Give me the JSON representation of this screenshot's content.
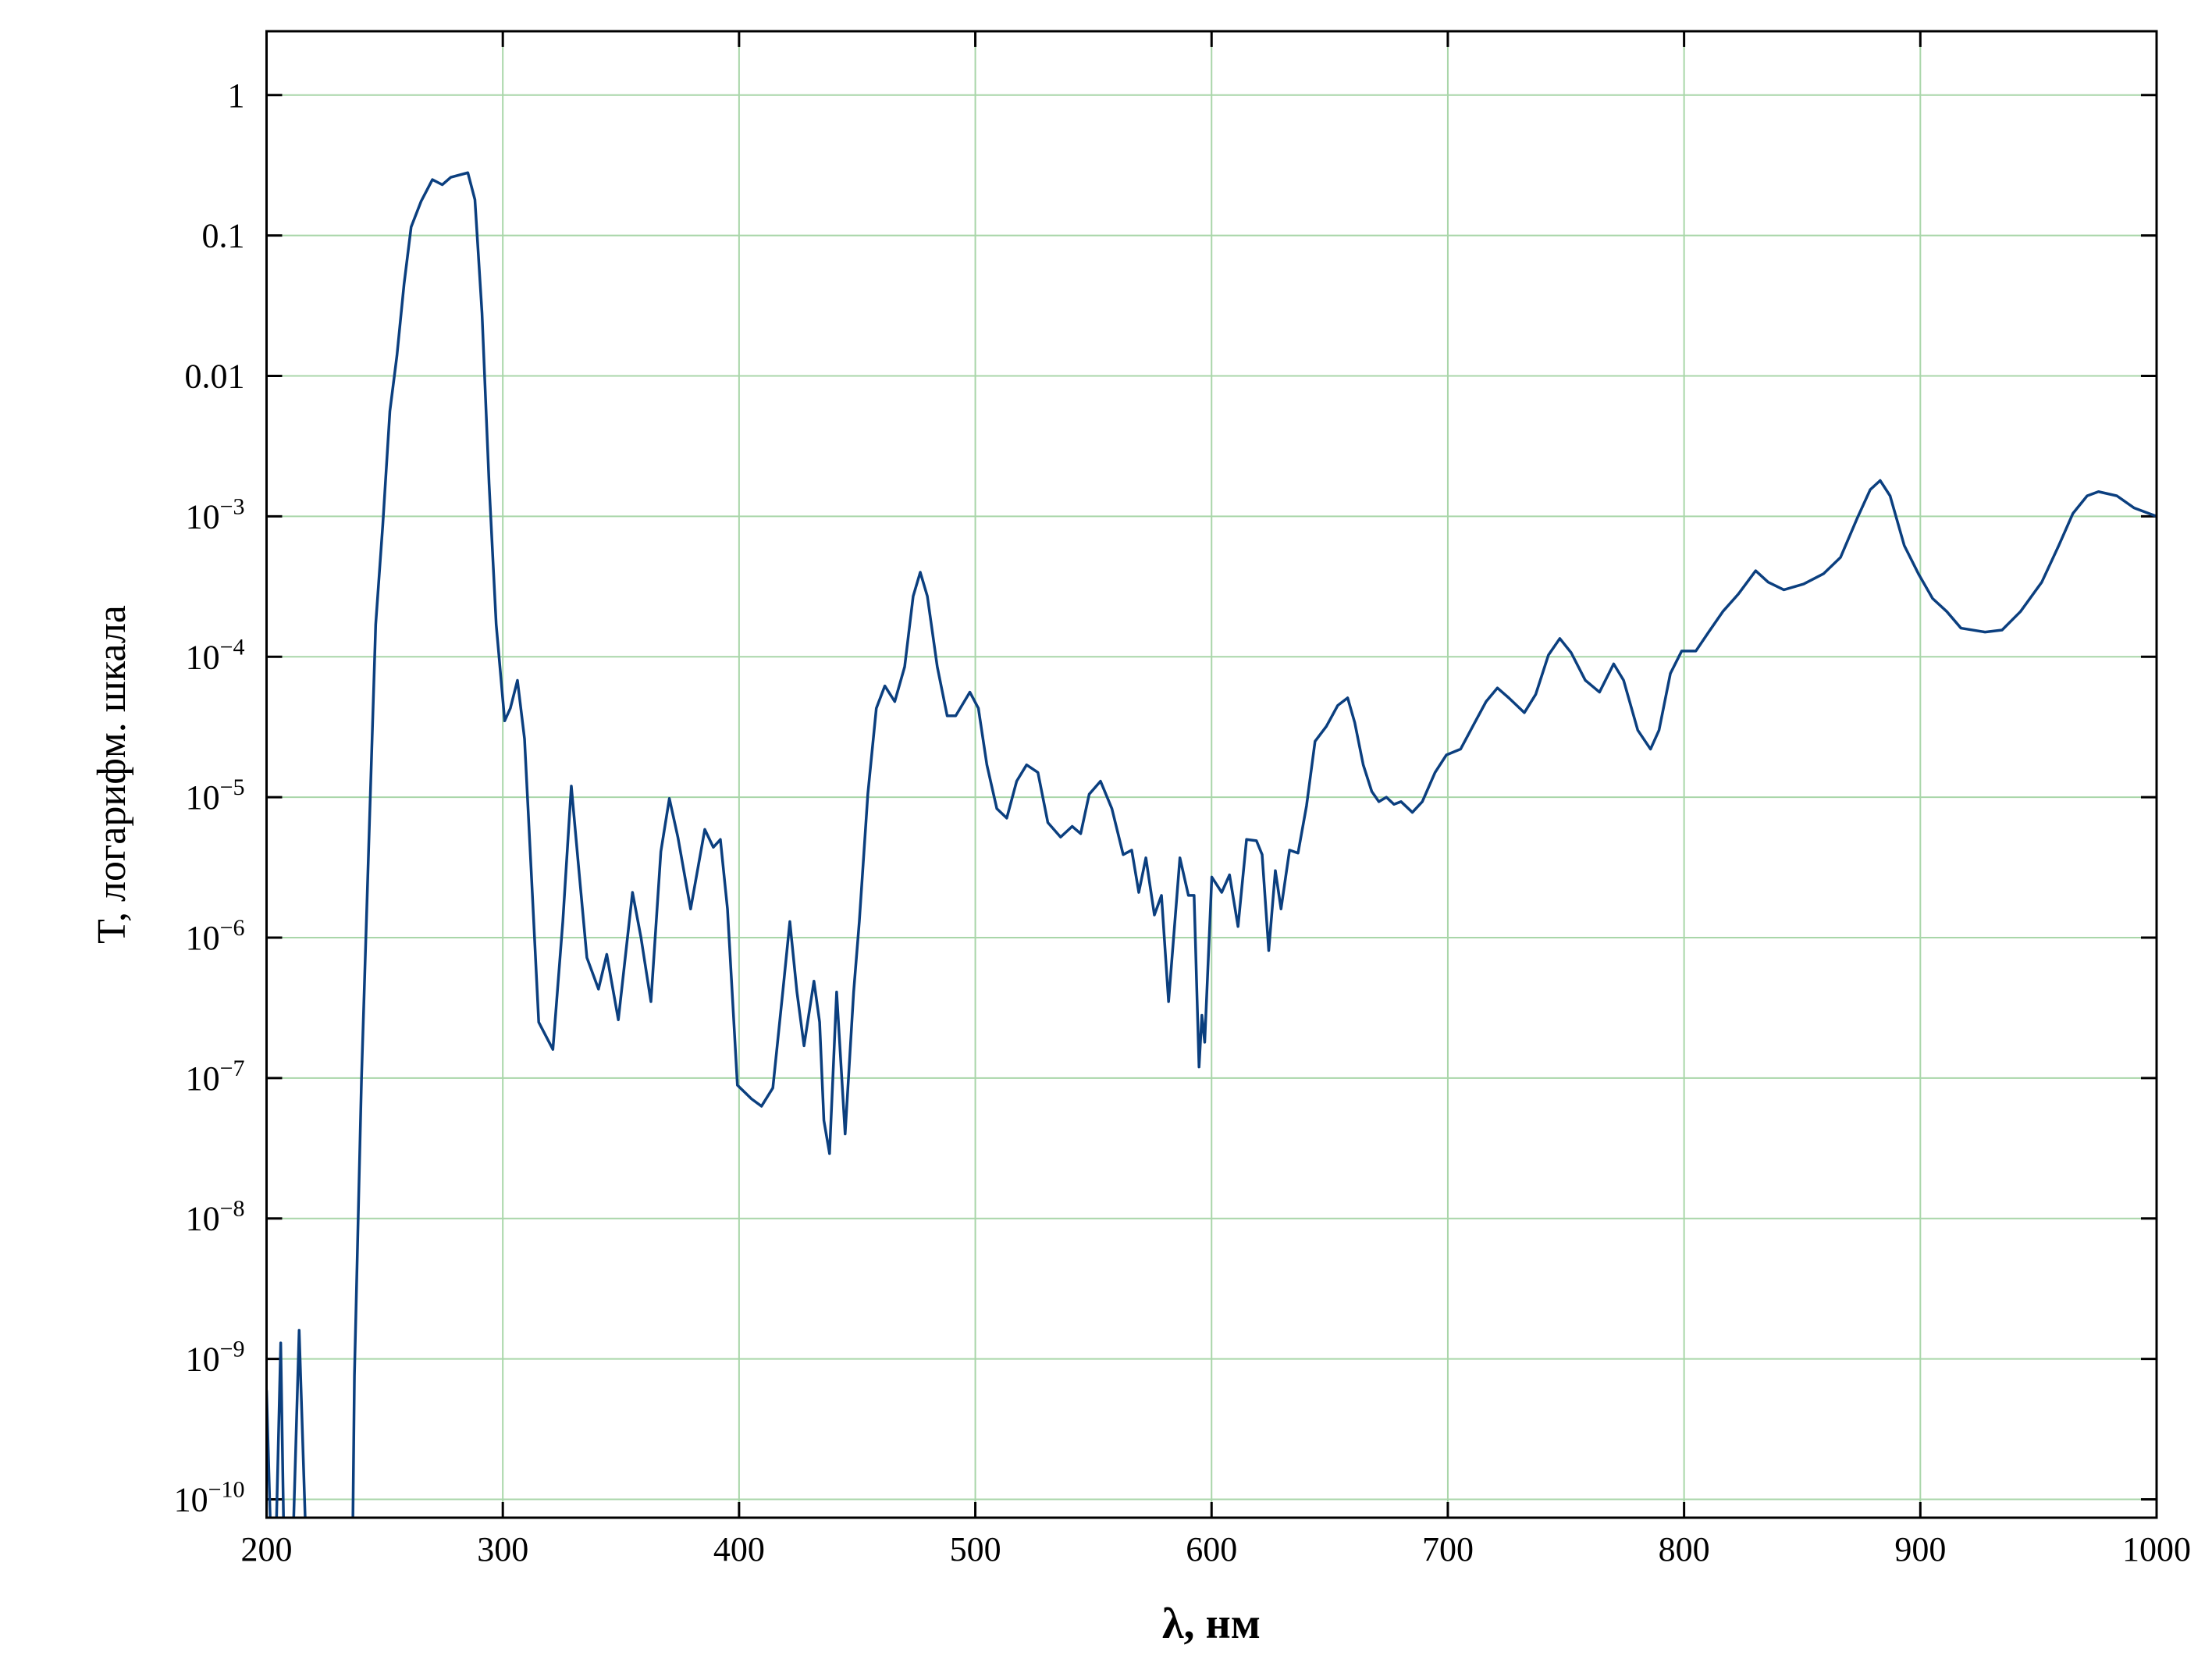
{
  "chart_data": {
    "type": "line",
    "xlabel": "λ, нм",
    "ylabel": "T, логарифм. шкала",
    "x": [
      200,
      203,
      206,
      208,
      210,
      213.8,
      218,
      236,
      237.2,
      240.2,
      243.2,
      246.2,
      249.2,
      252.2,
      255.2,
      258.2,
      261.2,
      265.4,
      270.2,
      274.4,
      278,
      285.2,
      288.2,
      291.2,
      294.2,
      297.2,
      300.8,
      303.2,
      306.2,
      309.2,
      312.2,
      315.2,
      321.2,
      325.4,
      329,
      332,
      335.6,
      340.5,
      344,
      348.9,
      354.9,
      358.5,
      362.7,
      366.9,
      370.5,
      374.1,
      379.5,
      385.5,
      389.1,
      392.1,
      395.1,
      399.3,
      405.3,
      409.5,
      414.3,
      418.5,
      421.5,
      424.5,
      427.5,
      431.7,
      434.1,
      435.9,
      438.3,
      441.3,
      444.9,
      448.5,
      450.9,
      454.5,
      458.1,
      461.7,
      465.9,
      470.1,
      473.7,
      476.7,
      479.7,
      483.9,
      488.1,
      491.7,
      497.7,
      501.3,
      504.9,
      509.1,
      513.3,
      517.5,
      521.7,
      526.5,
      530.7,
      536.1,
      541,
      544.6,
      548.2,
      553,
      557.8,
      562.6,
      566.2,
      569.2,
      572.2,
      575.8,
      578.8,
      581.8,
      586.6,
      590.2,
      592.6,
      594.7,
      595.9,
      597.1,
      600.1,
      604.3,
      607.6,
      611.2,
      614.8,
      619,
      621.4,
      624.2,
      627,
      629.4,
      633,
      636.6,
      640.2,
      643.8,
      648.6,
      653.4,
      657.6,
      660.6,
      664.2,
      667.8,
      670.8,
      674,
      677.2,
      680.2,
      685,
      689.2,
      694.6,
      699.4,
      705.4,
      711.4,
      716.2,
      721,
      725.8,
      732.4,
      737.2,
      742.6,
      747.4,
      752.2,
      758.2,
      764.2,
      770.2,
      774.4,
      780.4,
      785.8,
      789.4,
      794.2,
      799,
      805,
      810.4,
      816.4,
      823,
      830.3,
      835.6,
      842.2,
      850.6,
      859,
      866.2,
      873.4,
      878.8,
      883,
      887.2,
      893.2,
      899.2,
      905.2,
      911.2,
      917.2,
      927.4,
      934.6,
      942.4,
      951.4,
      958.6,
      964.6,
      970.6,
      975.4,
      983.2,
      990.4,
      1000
    ],
    "values": [
      6e-10,
      1e-11,
      1.3e-09,
      1e-11,
      1e-11,
      1.6e-09,
      1e-11,
      1e-11,
      7.6e-10,
      1e-07,
      4.2e-06,
      0.00017,
      0.00087,
      0.0056,
      0.014,
      0.045,
      0.115,
      0.175,
      0.25,
      0.23,
      0.26,
      0.28,
      0.18,
      0.028,
      0.0017,
      0.00017,
      3.5e-05,
      4.3e-05,
      6.8e-05,
      2.6e-05,
      2.6e-06,
      2.5e-07,
      1.6e-07,
      1.3e-06,
      1.2e-05,
      3.3e-06,
      7.2e-07,
      4.3e-07,
      7.6e-07,
      2.6e-07,
      2.1e-06,
      1e-06,
      3.5e-07,
      4.1e-06,
      9.8e-06,
      5.2e-06,
      1.6e-06,
      5.9e-06,
      4.4e-06,
      5e-06,
      1.6e-06,
      8.9e-08,
      7.1e-08,
      6.3e-08,
      8.5e-08,
      4.1e-07,
      1.3e-06,
      4.1e-07,
      1.7e-07,
      4.9e-07,
      2.5e-07,
      5e-08,
      2.9e-08,
      4.1e-07,
      4e-08,
      4.1e-07,
      1.3e-06,
      1.05e-05,
      4.3e-05,
      6.2e-05,
      4.8e-05,
      8.5e-05,
      0.00027,
      0.0004,
      0.00027,
      8.5e-05,
      3.8e-05,
      3.8e-05,
      5.6e-05,
      4.3e-05,
      1.7e-05,
      8.3e-06,
      7.1e-06,
      1.3e-05,
      1.7e-05,
      1.5e-05,
      6.6e-06,
      5.2e-06,
      6.2e-06,
      5.5e-06,
      1.05e-05,
      1.3e-05,
      8.3e-06,
      3.9e-06,
      4.2e-06,
      2.1e-06,
      3.7e-06,
      1.45e-06,
      2e-06,
      3.5e-07,
      3.7e-06,
      2e-06,
      2e-06,
      1.2e-07,
      2.8e-07,
      1.8e-07,
      2.7e-06,
      2.1e-06,
      2.8e-06,
      1.2e-06,
      5e-06,
      4.9e-06,
      3.9e-06,
      8.1e-07,
      3e-06,
      1.6e-06,
      4.2e-06,
      4e-06,
      8.7e-06,
      2.5e-05,
      3.2e-05,
      4.5e-05,
      5.1e-05,
      3.4e-05,
      1.7e-05,
      1.1e-05,
      9.3e-06,
      1e-05,
      8.9e-06,
      9.3e-06,
      7.8e-06,
      9.3e-06,
      1.5e-05,
      2e-05,
      2.2e-05,
      3.4e-05,
      4.8e-05,
      6e-05,
      5.1e-05,
      4e-05,
      5.4e-05,
      0.000103,
      0.000135,
      0.000107,
      6.8e-05,
      5.6e-05,
      8.9e-05,
      6.8e-05,
      3e-05,
      2.2e-05,
      3e-05,
      7.6e-05,
      0.00011,
      0.00011,
      0.00015,
      0.00021,
      0.00028,
      0.00041,
      0.00034,
      0.0003,
      0.00033,
      0.00039,
      0.00051,
      0.00098,
      0.00155,
      0.0018,
      0.0014,
      0.00062,
      0.00039,
      0.00026,
      0.00021,
      0.00016,
      0.00015,
      0.000155,
      0.00021,
      0.00034,
      0.00062,
      0.00105,
      0.0014,
      0.0015,
      0.0014,
      0.00115,
      0.001
    ],
    "color": "#0b3f7f",
    "xlim": [
      200,
      1000
    ],
    "xticks": [
      200,
      300,
      400,
      500,
      600,
      700,
      800,
      900,
      1000
    ],
    "ylim": [
      7.4e-11,
      2.85
    ],
    "log_y": true,
    "yticks": [
      1,
      0.1,
      0.01,
      {
        "value": 0.001,
        "label": "10−3"
      },
      {
        "value": 0.0001,
        "label": "10−4"
      },
      {
        "value": 1e-05,
        "label": "10−5"
      },
      {
        "value": 1e-06,
        "label": "10−6"
      },
      {
        "value": 1e-07,
        "label": "10−7"
      },
      {
        "value": 1e-08,
        "label": "10−8"
      },
      {
        "value": 1e-09,
        "label": "10−9"
      },
      {
        "value": 1e-10,
        "label": "10−10"
      }
    ],
    "grid": true,
    "grid_color": "#a9d6a9"
  }
}
